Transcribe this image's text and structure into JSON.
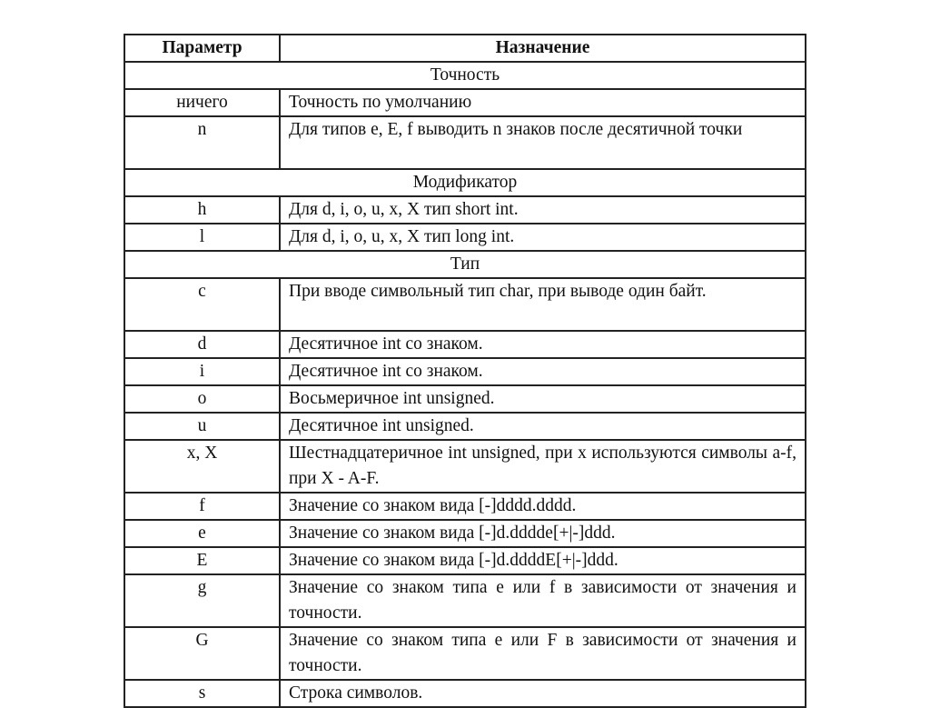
{
  "header": {
    "param": "Параметр",
    "purpose": "Назначение"
  },
  "rows": [
    {
      "section": "Точность"
    },
    {
      "param": "ничего",
      "desc": "Точность по умолчанию"
    },
    {
      "param": "n",
      "desc": "Для типов e, E, f выводить n знаков после десятичной точки"
    },
    {
      "section": "Модификатор"
    },
    {
      "param": "h",
      "desc": "Для d, i, o, u, x, X тип short int."
    },
    {
      "param": "l",
      "desc": "Для d, i, o, u, x, X тип long int."
    },
    {
      "section": "Тип"
    },
    {
      "param": "c",
      "desc": "При вводе символьный тип char, при выводе один байт."
    },
    {
      "param": "d",
      "desc": "Десятичное int со знаком."
    },
    {
      "param": "i",
      "desc": "Десятичное int со знаком."
    },
    {
      "param": "o",
      "desc": "Восьмеричное int unsigned."
    },
    {
      "param": "u",
      "desc": "Десятичное int unsigned."
    },
    {
      "param": "x, X",
      "desc": "Шестнадцатеричное int unsigned, при x используются символы a-f, при X - A-F."
    },
    {
      "param": "f",
      "desc": "Значение со знаком вида [-]dddd.dddd."
    },
    {
      "param": "e",
      "desc": "Значение со знаком вида [-]d.dddde[+|-]ddd."
    },
    {
      "param": "E",
      "desc": "Значение со знаком вида [-]d.ddddE[+|-]ddd."
    },
    {
      "param": "g",
      "desc": "Значение со знаком типа e или f в зависимости от значения и точности."
    },
    {
      "param": "G",
      "desc": "Значение со знаком типа e или F в зависимости от значения и точности."
    },
    {
      "param": "s",
      "desc": "Строка символов."
    }
  ]
}
